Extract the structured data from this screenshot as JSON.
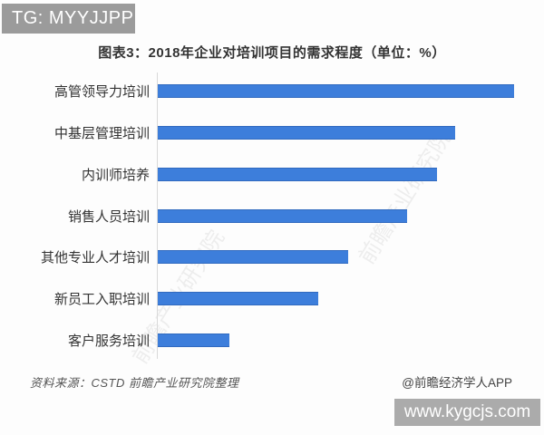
{
  "overlays": {
    "top_badge": "TG: MYYJJPP",
    "bottom_badge": "www.kygcjs.com"
  },
  "chart": {
    "title": "图表3：2018年企业对培训项目的需求程度（单位：%）",
    "source_note": "资料来源：CSTD 前瞻产业研究院整理",
    "credit": "@前瞻经济学人APP",
    "bar_color": "#3d7edb",
    "axis_color": "#d9d9d9",
    "watermark_text": "前瞻产业研究院"
  },
  "chart_data": {
    "type": "bar",
    "orientation": "horizontal",
    "title": "图表3：2018年企业对培训项目的需求程度（单位：%）",
    "unit": "%",
    "categories": [
      "高管领导力培训",
      "中基层管理培训",
      "内训师培养",
      "销售人员培训",
      "其他专业人才培训",
      "新员工入职培训",
      "客户服务培训"
    ],
    "values": [
      60,
      50,
      47,
      42,
      32,
      27,
      12
    ],
    "xlim": [
      0,
      61
    ],
    "grid": false,
    "legend": false,
    "value_labels_shown": false
  }
}
